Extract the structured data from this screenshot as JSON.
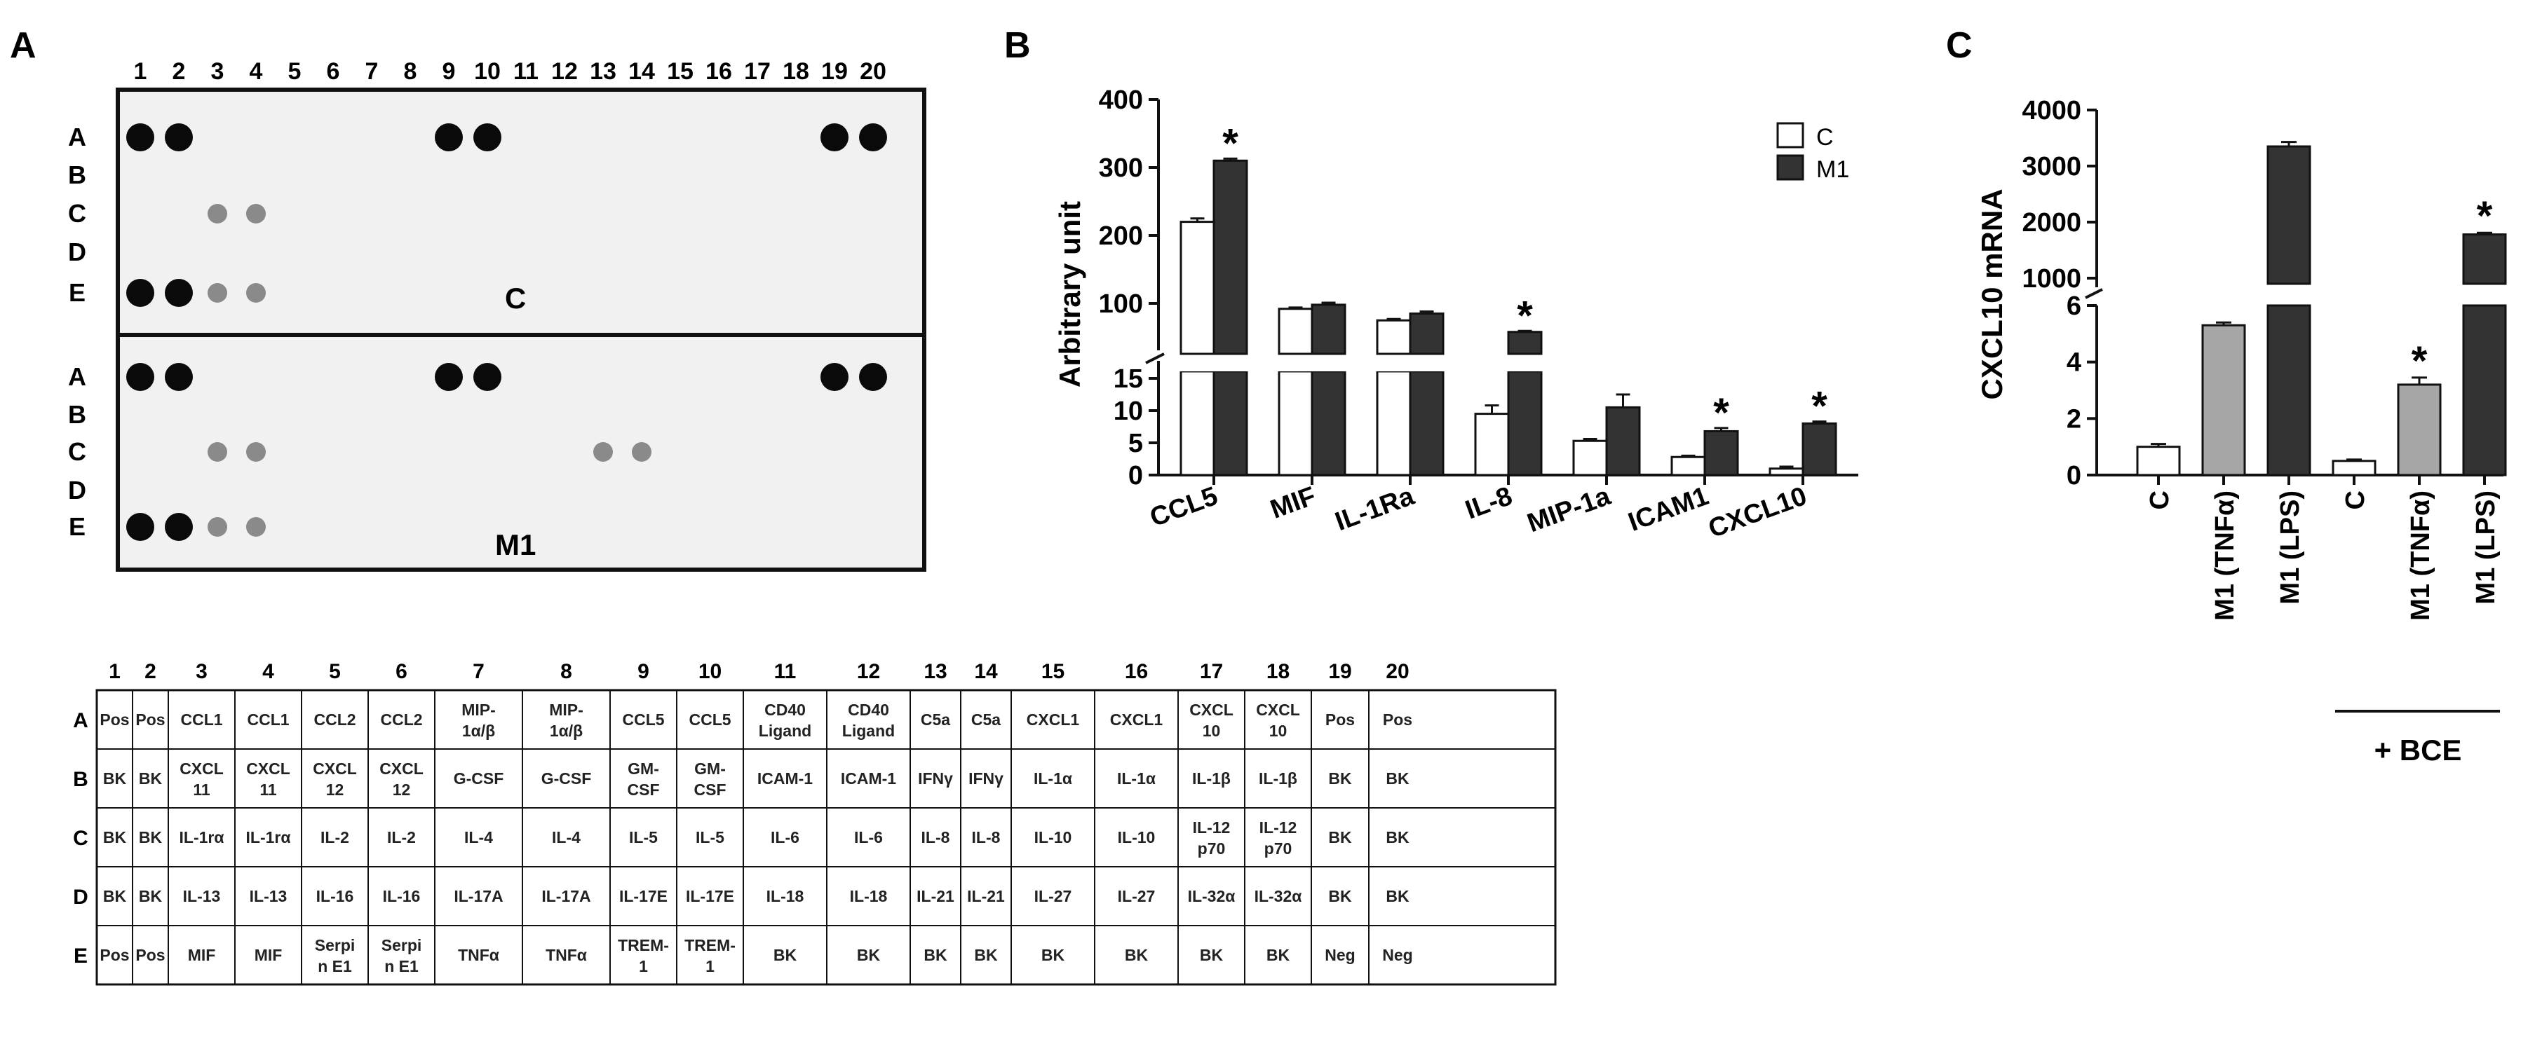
{
  "panel_labels": {
    "a": "A",
    "b": "B",
    "c": "C"
  },
  "blot": {
    "columns": [
      "1",
      "2",
      "3",
      "4",
      "5",
      "6",
      "7",
      "8",
      "9",
      "10",
      "11",
      "12",
      "13",
      "14",
      "15",
      "16",
      "17",
      "18",
      "19",
      "20"
    ],
    "rows": [
      "A",
      "B",
      "C",
      "D",
      "E"
    ],
    "top_label": "C",
    "bottom_label": "M1",
    "top_spots": [
      [
        "A",
        1
      ],
      [
        "A",
        2
      ],
      [
        "A",
        9
      ],
      [
        "A",
        10
      ],
      [
        "A",
        19
      ],
      [
        "A",
        20
      ],
      [
        "C",
        3
      ],
      [
        "C",
        4
      ],
      [
        "E",
        1
      ],
      [
        "E",
        2
      ],
      [
        "E",
        3
      ],
      [
        "E",
        4
      ]
    ],
    "bottom_spots": [
      [
        "A",
        1
      ],
      [
        "A",
        2
      ],
      [
        "A",
        9
      ],
      [
        "A",
        10
      ],
      [
        "A",
        19
      ],
      [
        "A",
        20
      ],
      [
        "C",
        3
      ],
      [
        "C",
        4
      ],
      [
        "C",
        13
      ],
      [
        "C",
        14
      ],
      [
        "E",
        1
      ],
      [
        "E",
        2
      ],
      [
        "E",
        3
      ],
      [
        "E",
        4
      ]
    ]
  },
  "table": {
    "columns": [
      "1",
      "2",
      "3",
      "4",
      "5",
      "6",
      "7",
      "8",
      "9",
      "10",
      "11",
      "12",
      "13",
      "14",
      "15",
      "16",
      "17",
      "18",
      "19",
      "20"
    ],
    "rows": [
      "A",
      "B",
      "C",
      "D",
      "E"
    ],
    "cells": [
      [
        "Pos",
        "Pos",
        "CCL1",
        "CCL1",
        "CCL2",
        "CCL2",
        "MIP-|1α/β",
        "MIP-|1α/β",
        "CCL5",
        "CCL5",
        "CD40|Ligand",
        "CD40|Ligand",
        "C5a",
        "C5a",
        "CXCL1",
        "CXCL1",
        "CXCL|10",
        "CXCL|10",
        "Pos",
        "Pos"
      ],
      [
        "BK",
        "BK",
        "CXCL|11",
        "CXCL|11",
        "CXCL|12",
        "CXCL|12",
        "G-CSF",
        "G-CSF",
        "GM-|CSF",
        "GM-|CSF",
        "ICAM-1",
        "ICAM-1",
        "IFNγ",
        "IFNγ",
        "IL-1α",
        "IL-1α",
        "IL-1β",
        "IL-1β",
        "BK",
        "BK"
      ],
      [
        "BK",
        "BK",
        "IL-1rα",
        "IL-1rα",
        "IL-2",
        "IL-2",
        "IL-4",
        "IL-4",
        "IL-5",
        "IL-5",
        "IL-6",
        "IL-6",
        "IL-8",
        "IL-8",
        "IL-10",
        "IL-10",
        "IL-12|p70",
        "IL-12|p70",
        "BK",
        "BK"
      ],
      [
        "BK",
        "BK",
        "IL-13",
        "IL-13",
        "IL-16",
        "IL-16",
        "IL-17A",
        "IL-17A",
        "IL-17E",
        "IL-17E",
        "IL-18",
        "IL-18",
        "IL-21",
        "IL-21",
        "IL-27",
        "IL-27",
        "IL-32α",
        "IL-32α",
        "BK",
        "BK"
      ],
      [
        "Pos",
        "Pos",
        "MIF",
        "MIF",
        "Serpi|n E1",
        "Serpi|n E1",
        "TNFα",
        "TNFα",
        "TREM-|1",
        "TREM-|1",
        "BK",
        "BK",
        "BK",
        "BK",
        "BK",
        "BK",
        "BK",
        "BK",
        "Neg",
        "Neg"
      ]
    ]
  },
  "chart_data": [
    {
      "type": "bar",
      "ylabel": "Arbitrary unit",
      "categories": [
        "CCL5",
        "MIF",
        "IL-1Ra",
        "IL-8",
        "MIP-1a",
        "ICAM1",
        "CXCL10"
      ],
      "series": [
        {
          "name": "C",
          "color": "#ffffff",
          "values": [
            220,
            92,
            75,
            9.5,
            5.3,
            2.8,
            1.0
          ],
          "errors": [
            5,
            2,
            2,
            1.3,
            0.3,
            0.2,
            0.3
          ]
        },
        {
          "name": "M1",
          "color": "#333333",
          "values": [
            310,
            98,
            85,
            58,
            10.5,
            6.8,
            8.0
          ],
          "errors": [
            3,
            3,
            3,
            1.5,
            2.0,
            0.5,
            0.3
          ]
        }
      ],
      "significant_star": [
        true,
        false,
        false,
        true,
        false,
        true,
        true
      ],
      "axis_break": {
        "lower": [
          0,
          15
        ],
        "upper": [
          60,
          400
        ]
      },
      "yticks_lower": [
        0,
        5,
        10,
        15
      ],
      "yticks_upper": [
        100,
        200,
        300,
        400
      ],
      "legend_position": "top-right"
    },
    {
      "type": "bar",
      "ylabel": "CXCL10 mRNA",
      "categories": [
        "C",
        "M1 (TNFα)",
        "M1 (LPS)",
        "C",
        "M1 (TNFα)",
        "M1 (LPS)"
      ],
      "values": [
        1.0,
        5.3,
        3350,
        0.5,
        3.2,
        1780
      ],
      "errors": [
        0.1,
        0.1,
        80,
        0.05,
        0.25,
        30
      ],
      "colors": [
        "#ffffff",
        "#a6a6a6",
        "#333333",
        "#ffffff",
        "#a6a6a6",
        "#333333"
      ],
      "significant_star": [
        false,
        false,
        false,
        false,
        true,
        true
      ],
      "axis_break": {
        "lower": [
          0,
          6
        ],
        "upper": [
          1000,
          4000
        ]
      },
      "yticks_lower": [
        0,
        2,
        4,
        6
      ],
      "yticks_upper": [
        1000,
        2000,
        3000,
        4000
      ],
      "group_label": "+ BCE"
    }
  ]
}
